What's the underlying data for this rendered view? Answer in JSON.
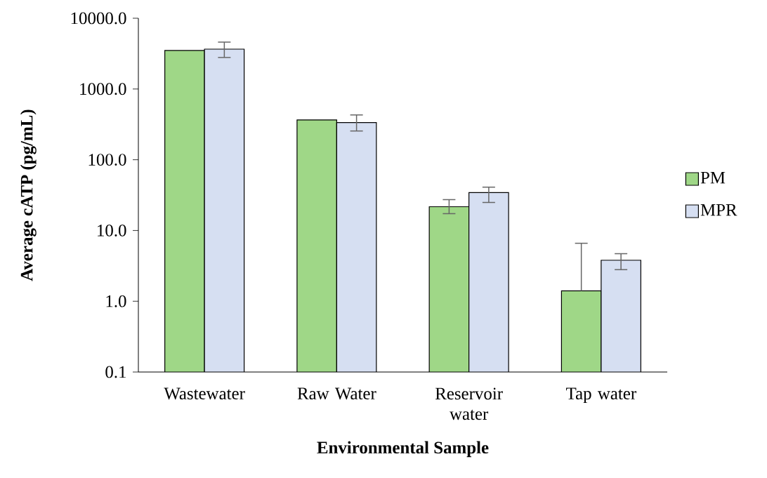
{
  "chart_data": {
    "type": "bar",
    "xlabel": "Environmental Sample",
    "ylabel": "Average cATP (pg/mL)",
    "categories": [
      "Wastewater",
      "Raw Water",
      "Reservoir water",
      "Tap water"
    ],
    "series": [
      {
        "name": "PM",
        "color": "#9fd787",
        "values": [
          3500,
          366,
          21.7,
          1.4
        ],
        "errors": [
          null,
          null,
          [
            17.3,
            27.3
          ],
          [
            1.4,
            6.6
          ]
        ]
      },
      {
        "name": "MPR",
        "color": "#d6dff2",
        "values": [
          3660,
          335,
          34.3,
          3.8
        ],
        "errors": [
          [
            2790,
            4600
          ],
          [
            255,
            430
          ],
          [
            24.9,
            41
          ],
          [
            2.8,
            4.7
          ]
        ]
      }
    ],
    "log": "y",
    "ylim": [
      0.1,
      10000
    ],
    "yticks": [
      {
        "value": 0.1,
        "label": "0.1"
      },
      {
        "value": 1,
        "label": "1.0"
      },
      {
        "value": 10,
        "label": "10.0"
      },
      {
        "value": 100,
        "label": "100.0"
      },
      {
        "value": 1000,
        "label": "1000.0"
      },
      {
        "value": 10000,
        "label": "10000.0"
      }
    ],
    "legend": "right"
  }
}
